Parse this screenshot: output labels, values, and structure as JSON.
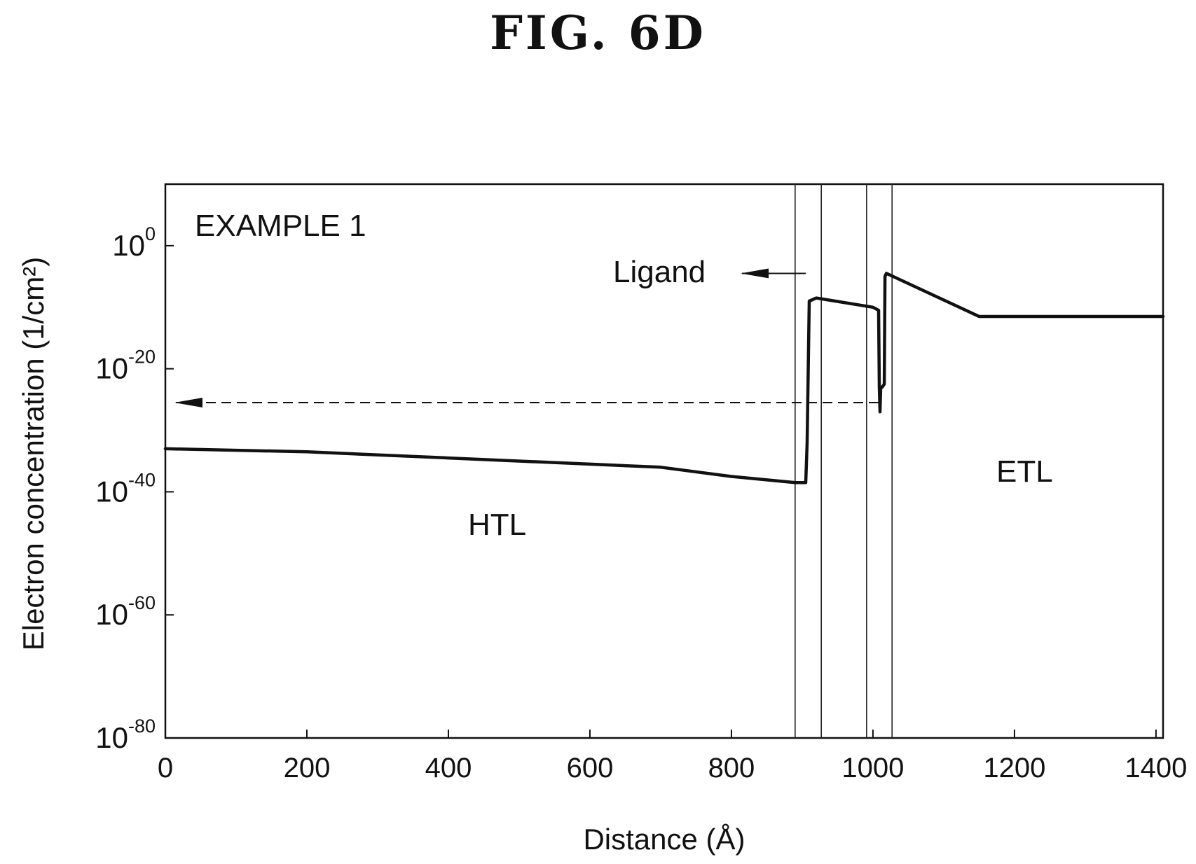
{
  "figure": {
    "title": "FIG. 6D"
  },
  "chart_data": {
    "type": "line",
    "title": "FIG. 6D",
    "xlabel": "Distance (Å)",
    "ylabel": "Electron concentration (1/cm²)",
    "xlim": [
      0,
      1410
    ],
    "ylim_exponent": [
      -80,
      10
    ],
    "yscale": "log",
    "grid": false,
    "x_ticks": [
      {
        "value": 0,
        "label": "0"
      },
      {
        "value": 200,
        "label": "200"
      },
      {
        "value": 400,
        "label": "400"
      },
      {
        "value": 600,
        "label": "600"
      },
      {
        "value": 800,
        "label": "800"
      },
      {
        "value": 1000,
        "label": "1000"
      },
      {
        "value": 1200,
        "label": "1200"
      },
      {
        "value": 1400,
        "label": "1400"
      }
    ],
    "y_ticks": [
      {
        "exponent": 0,
        "base": "10",
        "sup": "0"
      },
      {
        "exponent": -20,
        "base": "10",
        "sup": "-20"
      },
      {
        "exponent": -40,
        "base": "10",
        "sup": "-40"
      },
      {
        "exponent": -60,
        "base": "10",
        "sup": "-60"
      },
      {
        "exponent": -80,
        "base": "10",
        "sup": "-80"
      }
    ],
    "series": [
      {
        "x": [
          0,
          200,
          400,
          600,
          700,
          800,
          890,
          905,
          907,
          910,
          920,
          1000,
          1008,
          1009,
          1010,
          1011,
          1013,
          1016,
          1017,
          1019,
          1150,
          1160,
          1410
        ],
        "y_exponent": [
          -33,
          -33.5,
          -34.5,
          -35.5,
          -36,
          -37.5,
          -38.5,
          -38.5,
          -32,
          -9,
          -8.5,
          -10,
          -10.5,
          -23,
          -27,
          -23,
          -23,
          -22.5,
          -5,
          -4.5,
          -11.5,
          -11.5,
          -11.5
        ]
      }
    ],
    "boundaries": [
      890,
      927,
      991,
      1027
    ],
    "annotations": {
      "example": "EXAMPLE 1",
      "ligand": "Ligand",
      "htl": "HTL",
      "etl": "ETL"
    },
    "reference_arrow": {
      "y_exponent": -25.5,
      "x_from": 1008,
      "x_to": 15
    },
    "ligand_arrow": {
      "y_exponent": -4.5,
      "x_from": 905,
      "x_to": 815
    }
  }
}
